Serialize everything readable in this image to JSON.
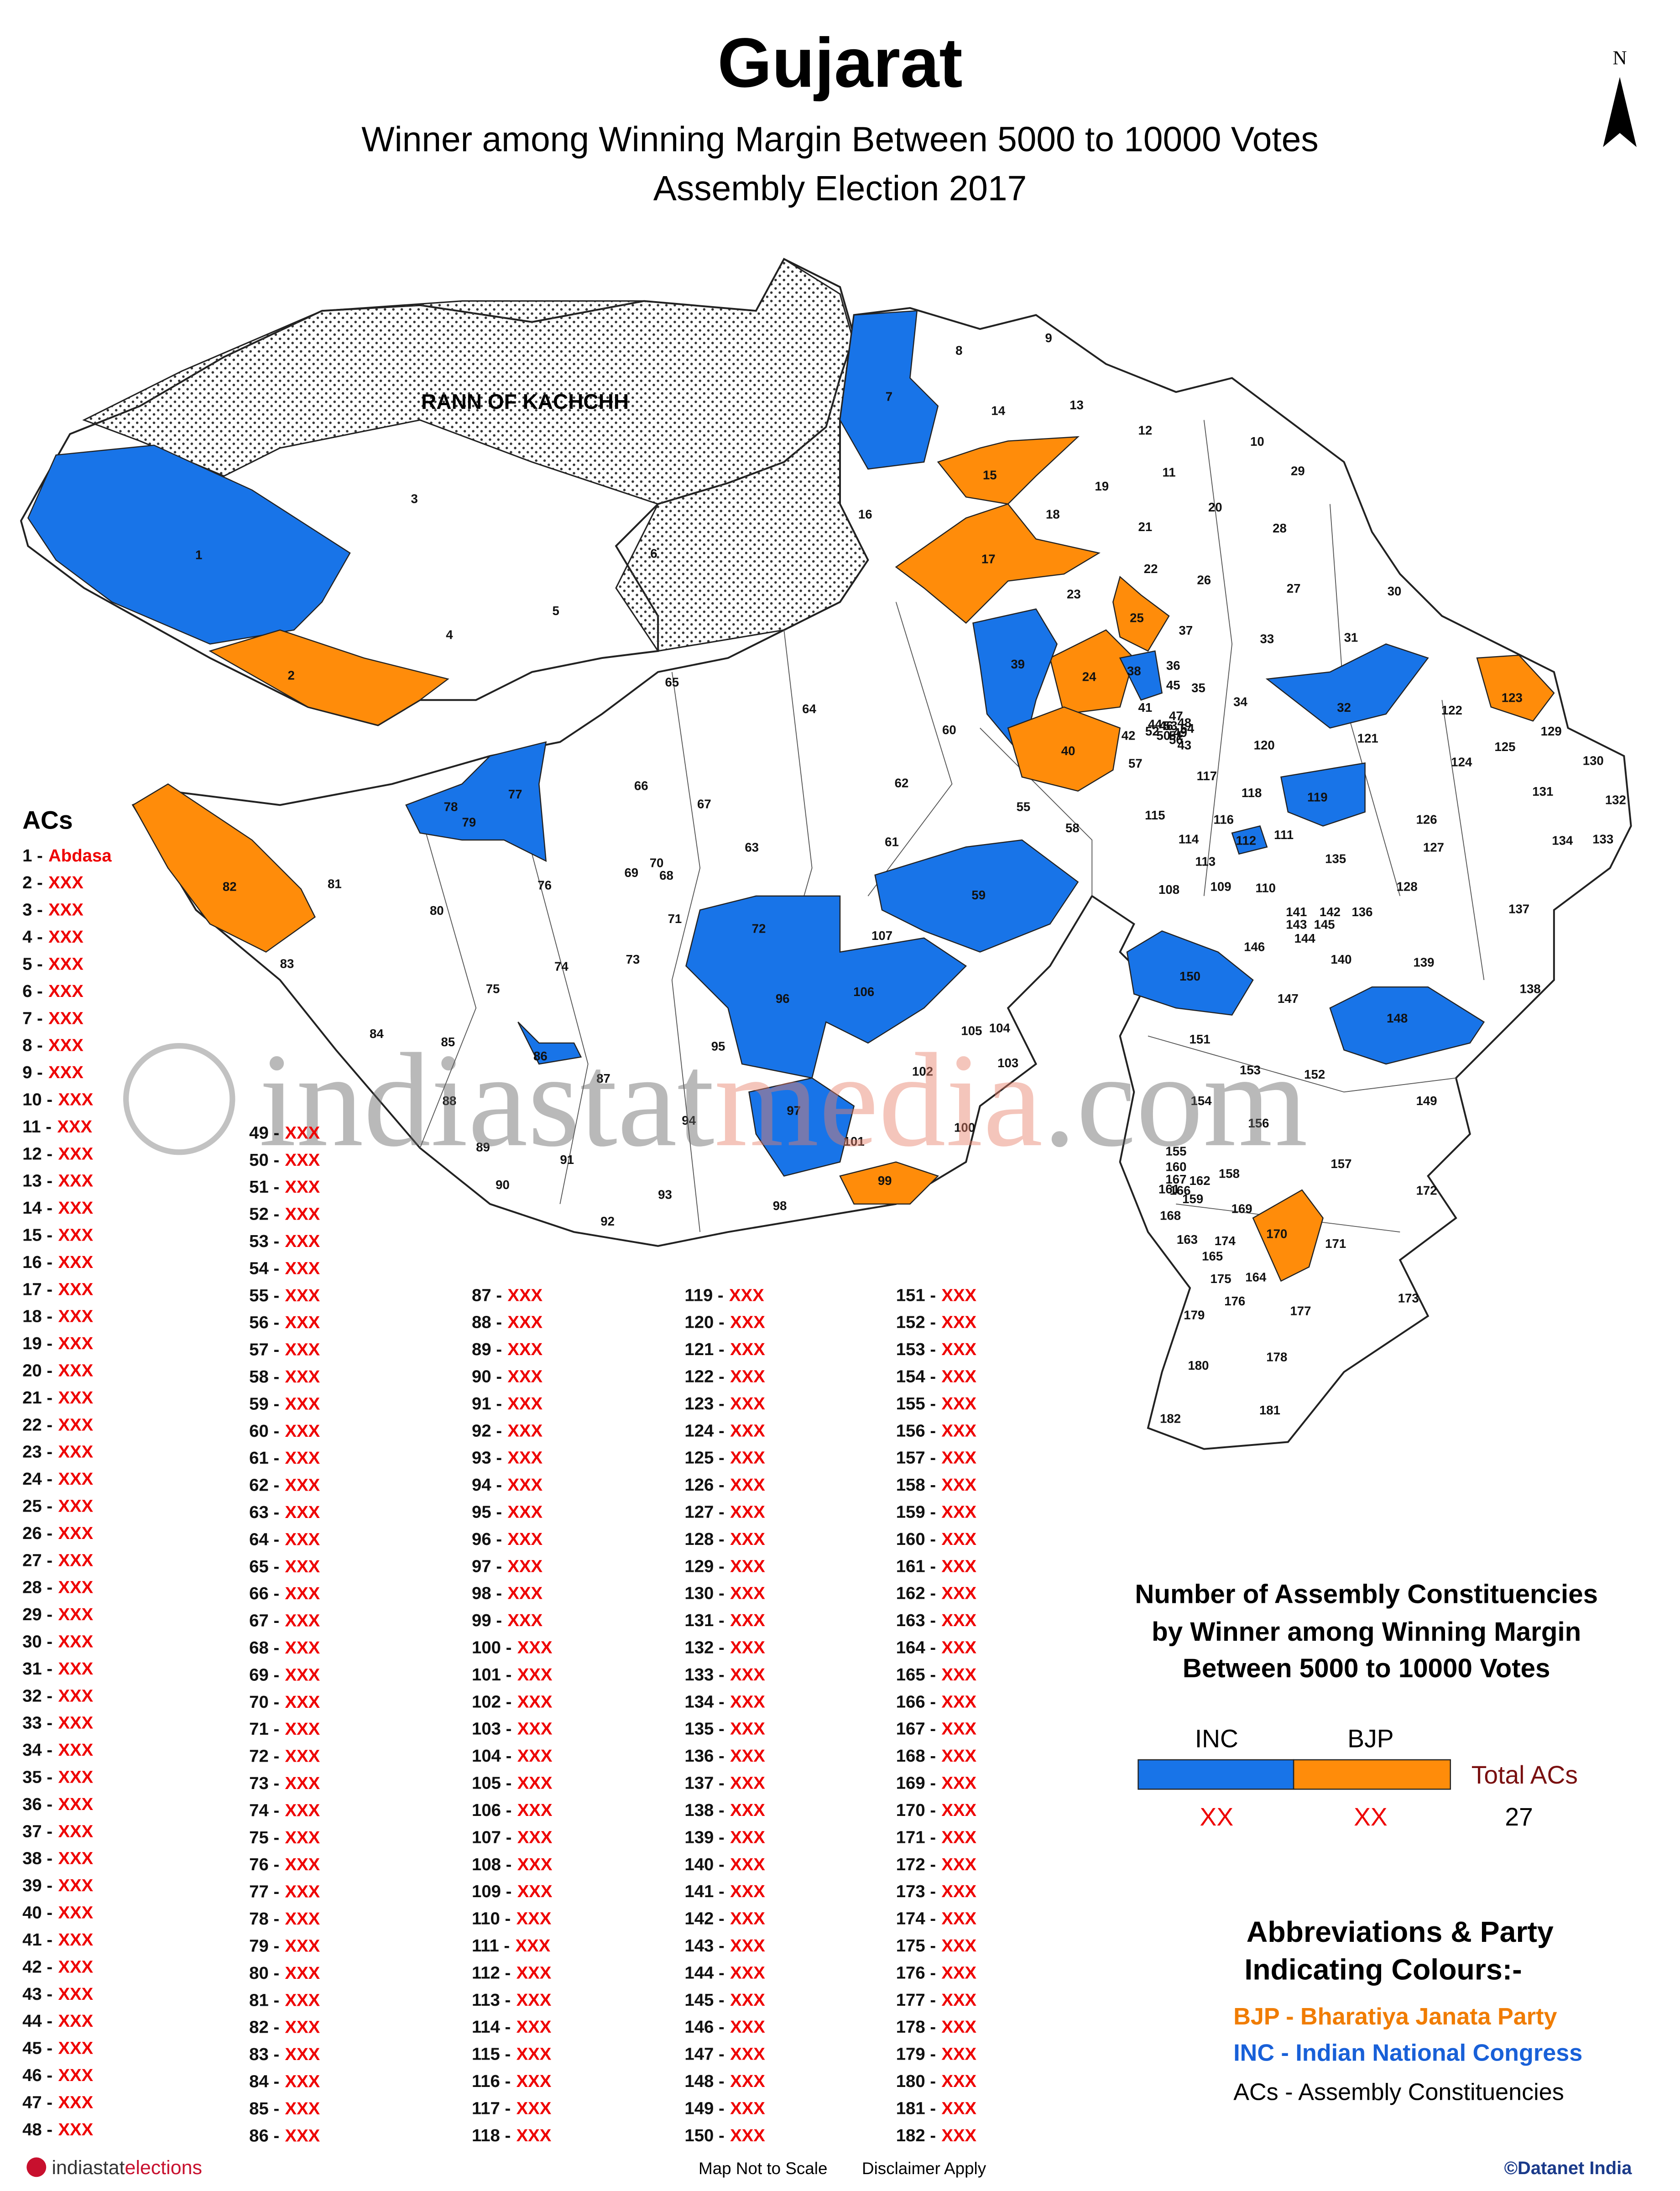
{
  "header": {
    "title": "Gujarat",
    "subtitle_lines": [
      "Winner among Winning Margin Between 5000 to 10000 Votes",
      "Assembly Election 2017"
    ],
    "north": "N"
  },
  "map": {
    "region_label": "RANN OF KACHCHH",
    "labels": [
      1,
      2,
      3,
      4,
      5,
      6,
      7,
      8,
      9,
      10,
      11,
      12,
      13,
      14,
      15,
      16,
      17,
      18,
      19,
      20,
      21,
      22,
      23,
      24,
      25,
      26,
      27,
      28,
      29,
      30,
      31,
      32,
      33,
      34,
      35,
      36,
      37,
      38,
      39,
      40,
      41,
      42,
      43,
      44,
      45,
      46,
      47,
      48,
      49,
      50,
      51,
      52,
      53,
      54,
      55,
      56,
      57,
      58,
      59,
      60,
      61,
      62,
      63,
      64,
      65,
      66,
      67,
      68,
      69,
      70,
      71,
      72,
      73,
      74,
      75,
      76,
      77,
      78,
      79,
      80,
      81,
      82,
      83,
      84,
      85,
      86,
      87,
      88,
      89,
      90,
      91,
      92,
      93,
      94,
      95,
      96,
      97,
      98,
      99,
      100,
      101,
      102,
      103,
      104,
      105,
      106,
      107,
      108,
      109,
      110,
      111,
      112,
      113,
      114,
      115,
      116,
      117,
      118,
      119,
      120,
      121,
      122,
      123,
      124,
      125,
      126,
      127,
      128,
      129,
      130,
      131,
      132,
      133,
      134,
      135,
      136,
      137,
      138,
      139,
      140,
      141,
      142,
      143,
      144,
      145,
      146,
      147,
      148,
      149,
      150,
      151,
      152,
      153,
      154,
      155,
      156,
      157,
      158,
      159,
      160,
      161,
      162,
      163,
      164,
      165,
      166,
      167,
      168,
      169,
      170,
      171,
      172,
      173,
      174,
      175,
      176,
      177,
      178,
      179,
      180,
      181,
      182
    ]
  },
  "ac_list": {
    "heading": "ACs",
    "entries": [
      [
        "1 -",
        "Abdasa"
      ],
      [
        "2 -",
        "XXX"
      ],
      [
        "3 -",
        "XXX"
      ],
      [
        "4 -",
        "XXX"
      ],
      [
        "5 -",
        "XXX"
      ],
      [
        "6 -",
        "XXX"
      ],
      [
        "7 -",
        "XXX"
      ],
      [
        "8 -",
        "XXX"
      ],
      [
        "9 -",
        "XXX"
      ],
      [
        "10 -",
        "XXX"
      ],
      [
        "11 -",
        "XXX"
      ],
      [
        "12 -",
        "XXX"
      ],
      [
        "13 -",
        "XXX"
      ],
      [
        "14 -",
        "XXX"
      ],
      [
        "15 -",
        "XXX"
      ],
      [
        "16 -",
        "XXX"
      ],
      [
        "17 -",
        "XXX"
      ],
      [
        "18 -",
        "XXX"
      ],
      [
        "19 -",
        "XXX"
      ],
      [
        "20 -",
        "XXX"
      ],
      [
        "21 -",
        "XXX"
      ],
      [
        "22 -",
        "XXX"
      ],
      [
        "23 -",
        "XXX"
      ],
      [
        "24 -",
        "XXX"
      ],
      [
        "25 -",
        "XXX"
      ],
      [
        "26 -",
        "XXX"
      ],
      [
        "27 -",
        "XXX"
      ],
      [
        "28 -",
        "XXX"
      ],
      [
        "29 -",
        "XXX"
      ],
      [
        "30 -",
        "XXX"
      ],
      [
        "31 -",
        "XXX"
      ],
      [
        "32 -",
        "XXX"
      ],
      [
        "33 -",
        "XXX"
      ],
      [
        "34 -",
        "XXX"
      ],
      [
        "35 -",
        "XXX"
      ],
      [
        "36 -",
        "XXX"
      ],
      [
        "37 -",
        "XXX"
      ],
      [
        "38 -",
        "XXX"
      ],
      [
        "39 -",
        "XXX"
      ],
      [
        "40 -",
        "XXX"
      ],
      [
        "41 -",
        "XXX"
      ],
      [
        "42 -",
        "XXX"
      ],
      [
        "43 -",
        "XXX"
      ],
      [
        "44 -",
        "XXX"
      ],
      [
        "45 -",
        "XXX"
      ],
      [
        "46 -",
        "XXX"
      ],
      [
        "47 -",
        "XXX"
      ],
      [
        "48 -",
        "XXX"
      ],
      [
        "49 -",
        "XXX"
      ],
      [
        "50 -",
        "XXX"
      ],
      [
        "51 -",
        "XXX"
      ],
      [
        "52 -",
        "XXX"
      ],
      [
        "53 -",
        "XXX"
      ],
      [
        "54 -",
        "XXX"
      ],
      [
        "55 -",
        "XXX"
      ],
      [
        "56 -",
        "XXX"
      ],
      [
        "57 -",
        "XXX"
      ],
      [
        "58 -",
        "XXX"
      ],
      [
        "59 -",
        "XXX"
      ],
      [
        "60 -",
        "XXX"
      ],
      [
        "61 -",
        "XXX"
      ],
      [
        "62 -",
        "XXX"
      ],
      [
        "63 -",
        "XXX"
      ],
      [
        "64 -",
        "XXX"
      ],
      [
        "65 -",
        "XXX"
      ],
      [
        "66 -",
        "XXX"
      ],
      [
        "67 -",
        "XXX"
      ],
      [
        "68 -",
        "XXX"
      ],
      [
        "69 -",
        "XXX"
      ],
      [
        "70 -",
        "XXX"
      ],
      [
        "71 -",
        "XXX"
      ],
      [
        "72 -",
        "XXX"
      ],
      [
        "73 -",
        "XXX"
      ],
      [
        "74 -",
        "XXX"
      ],
      [
        "75 -",
        "XXX"
      ],
      [
        "76 -",
        "XXX"
      ],
      [
        "77 -",
        "XXX"
      ],
      [
        "78 -",
        "XXX"
      ],
      [
        "79 -",
        "XXX"
      ],
      [
        "80 -",
        "XXX"
      ],
      [
        "81 -",
        "XXX"
      ],
      [
        "82 -",
        "XXX"
      ],
      [
        "83 -",
        "XXX"
      ],
      [
        "84 -",
        "XXX"
      ],
      [
        "85 -",
        "XXX"
      ],
      [
        "86 -",
        "XXX"
      ],
      [
        "87 -",
        "XXX"
      ],
      [
        "88 -",
        "XXX"
      ],
      [
        "89 -",
        "XXX"
      ],
      [
        "90 -",
        "XXX"
      ],
      [
        "91 -",
        "XXX"
      ],
      [
        "92 -",
        "XXX"
      ],
      [
        "93 -",
        "XXX"
      ],
      [
        "94 -",
        "XXX"
      ],
      [
        "95 -",
        "XXX"
      ],
      [
        "96 -",
        "XXX"
      ],
      [
        "97 -",
        "XXX"
      ],
      [
        "98 -",
        "XXX"
      ],
      [
        "99 -",
        "XXX"
      ],
      [
        "100 -",
        "XXX"
      ],
      [
        "101 -",
        "XXX"
      ],
      [
        "102 -",
        "XXX"
      ],
      [
        "103 -",
        "XXX"
      ],
      [
        "104 -",
        "XXX"
      ],
      [
        "105 -",
        "XXX"
      ],
      [
        "106 -",
        "XXX"
      ],
      [
        "107 -",
        "XXX"
      ],
      [
        "108 -",
        "XXX"
      ],
      [
        "109 -",
        "XXX"
      ],
      [
        "110 -",
        "XXX"
      ],
      [
        "111 -",
        "XXX"
      ],
      [
        "112 -",
        "XXX"
      ],
      [
        "113 -",
        "XXX"
      ],
      [
        "114 -",
        "XXX"
      ],
      [
        "115 -",
        "XXX"
      ],
      [
        "116 -",
        "XXX"
      ],
      [
        "117 -",
        "XXX"
      ],
      [
        "118 -",
        "XXX"
      ],
      [
        "119 -",
        "XXX"
      ],
      [
        "120 -",
        "XXX"
      ],
      [
        "121 -",
        "XXX"
      ],
      [
        "122 -",
        "XXX"
      ],
      [
        "123 -",
        "XXX"
      ],
      [
        "124 -",
        "XXX"
      ],
      [
        "125 -",
        "XXX"
      ],
      [
        "126 -",
        "XXX"
      ],
      [
        "127 -",
        "XXX"
      ],
      [
        "128 -",
        "XXX"
      ],
      [
        "129 -",
        "XXX"
      ],
      [
        "130 -",
        "XXX"
      ],
      [
        "131 -",
        "XXX"
      ],
      [
        "132 -",
        "XXX"
      ],
      [
        "133 -",
        "XXX"
      ],
      [
        "134 -",
        "XXX"
      ],
      [
        "135 -",
        "XXX"
      ],
      [
        "136 -",
        "XXX"
      ],
      [
        "137 -",
        "XXX"
      ],
      [
        "138 -",
        "XXX"
      ],
      [
        "139 -",
        "XXX"
      ],
      [
        "140 -",
        "XXX"
      ],
      [
        "141 -",
        "XXX"
      ],
      [
        "142 -",
        "XXX"
      ],
      [
        "143 -",
        "XXX"
      ],
      [
        "144 -",
        "XXX"
      ],
      [
        "145 -",
        "XXX"
      ],
      [
        "146 -",
        "XXX"
      ],
      [
        "147 -",
        "XXX"
      ],
      [
        "148 -",
        "XXX"
      ],
      [
        "149 -",
        "XXX"
      ],
      [
        "150 -",
        "XXX"
      ],
      [
        "151 -",
        "XXX"
      ],
      [
        "152 -",
        "XXX"
      ],
      [
        "153 -",
        "XXX"
      ],
      [
        "154 -",
        "XXX"
      ],
      [
        "155 -",
        "XXX"
      ],
      [
        "156 -",
        "XXX"
      ],
      [
        "157 -",
        "XXX"
      ],
      [
        "158 -",
        "XXX"
      ],
      [
        "159 -",
        "XXX"
      ],
      [
        "160 -",
        "XXX"
      ],
      [
        "161 -",
        "XXX"
      ],
      [
        "162 -",
        "XXX"
      ],
      [
        "163 -",
        "XXX"
      ],
      [
        "164 -",
        "XXX"
      ],
      [
        "165 -",
        "XXX"
      ],
      [
        "166 -",
        "XXX"
      ],
      [
        "167 -",
        "XXX"
      ],
      [
        "168 -",
        "XXX"
      ],
      [
        "169 -",
        "XXX"
      ],
      [
        "170 -",
        "XXX"
      ],
      [
        "171 -",
        "XXX"
      ],
      [
        "172 -",
        "XXX"
      ],
      [
        "173 -",
        "XXX"
      ],
      [
        "174 -",
        "XXX"
      ],
      [
        "175 -",
        "XXX"
      ],
      [
        "176 -",
        "XXX"
      ],
      [
        "177 -",
        "XXX"
      ],
      [
        "178 -",
        "XXX"
      ],
      [
        "179 -",
        "XXX"
      ],
      [
        "180 -",
        "XXX"
      ],
      [
        "181 -",
        "XXX"
      ],
      [
        "182 -",
        "XXX"
      ]
    ]
  },
  "summary": {
    "title_lines": [
      "Number of Assembly Constituencies",
      "by Winner among Winning Margin",
      "Between 5000 to 10000 Votes"
    ],
    "inc": "INC",
    "bjp": "BJP",
    "total_label": "Total ACs",
    "inc_count": "XX",
    "bjp_count": "XX",
    "total": "27"
  },
  "abbreviations": {
    "title_lines": [
      "Abbreviations & Party",
      "Indicating Colours:-"
    ],
    "bjp": "BJP - Bharatiya Janata Party",
    "inc": "INC - Indian National Congress",
    "acs": "ACs - Assembly Constituencies"
  },
  "watermark": {
    "a": "indiastat",
    "b": "media",
    ".com": ".com"
  },
  "footer": {
    "logo_a": "indiastat",
    "logo_b": "elections",
    "scale": "Map Not to Scale",
    "disclaimer": "Disclaimer Apply",
    "copyright": "©Datanet India"
  }
}
